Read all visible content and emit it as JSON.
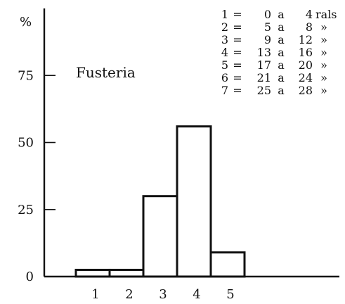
{
  "chart_data": {
    "type": "bar",
    "title": "",
    "xlabel": "",
    "ylabel": "%",
    "annotation": "Fusteria",
    "categories": [
      "1",
      "2",
      "3",
      "4",
      "5",
      "6",
      "7"
    ],
    "values": [
      2.5,
      2.5,
      30,
      56,
      9,
      0,
      0
    ],
    "ylim": [
      0,
      100
    ],
    "yticks": [
      "0",
      "25",
      "50",
      "75"
    ],
    "legend": [
      {
        "k": "1",
        "eq": "=",
        "from": "0",
        "a": "a",
        "to": "4",
        "unit": "rals"
      },
      {
        "k": "2",
        "eq": "=",
        "from": "5",
        "a": "a",
        "to": "8",
        "unit": "»"
      },
      {
        "k": "3",
        "eq": "=",
        "from": "9",
        "a": "a",
        "to": "12",
        "unit": "»"
      },
      {
        "k": "4",
        "eq": "=",
        "from": "13",
        "a": "a",
        "to": "16",
        "unit": "»"
      },
      {
        "k": "5",
        "eq": "=",
        "from": "17",
        "a": "a",
        "to": "20",
        "unit": "»"
      },
      {
        "k": "6",
        "eq": "=",
        "from": "21",
        "a": "a",
        "to": "24",
        "unit": "»"
      },
      {
        "k": "7",
        "eq": "=",
        "from": "25",
        "a": "a",
        "to": "28",
        "unit": "»"
      }
    ],
    "x_tick_labels": [
      "1",
      "2",
      "3",
      "4",
      "5"
    ],
    "legend_position": "top-right",
    "grid": false
  }
}
